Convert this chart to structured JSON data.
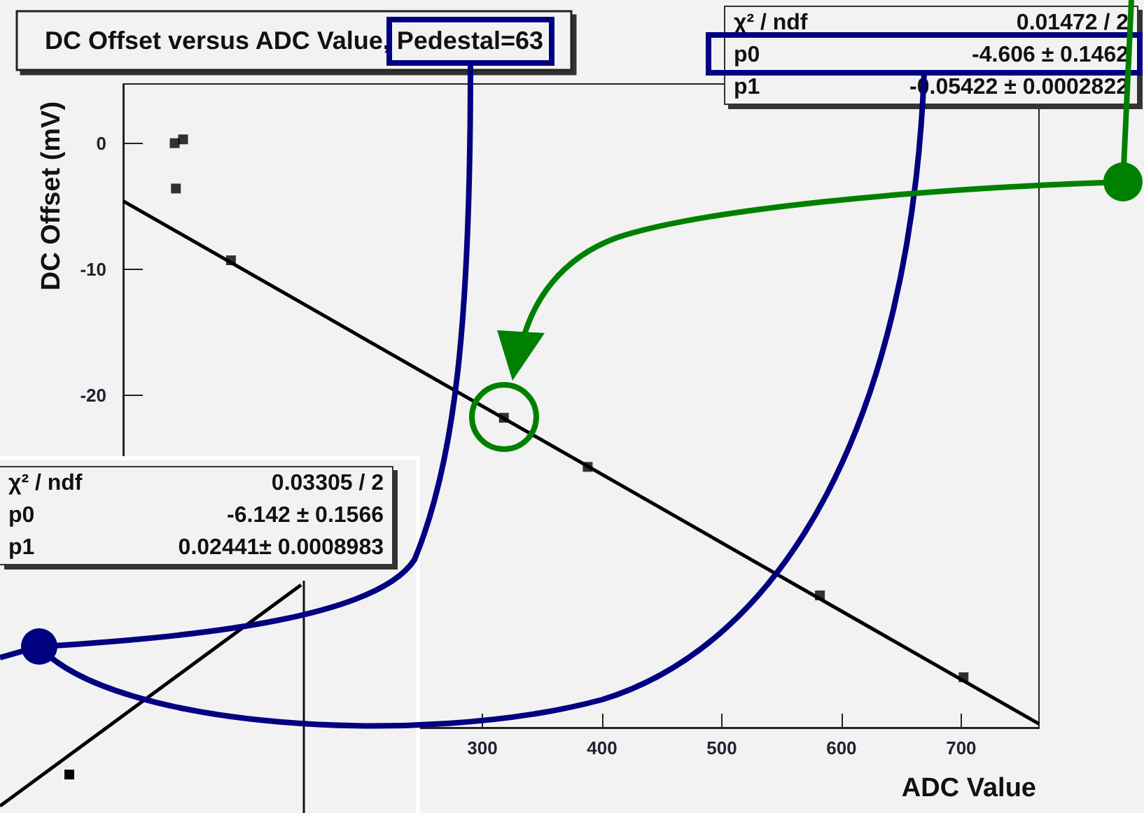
{
  "chart_data": [
    {
      "type": "scatter",
      "title": "DC Offset versus ADC Value, Pedestal=63",
      "xlabel": "ADC Value",
      "ylabel": "DC Offset (mV)",
      "series": [
        {
          "color": "#000000",
          "marker": "square",
          "x": [
            43,
            50,
            44,
            90,
            318,
            388,
            582,
            702
          ],
          "values": [
            0,
            0.3,
            -3.6,
            -9.3,
            -21.8,
            -25.7,
            -35.9,
            -42.4
          ]
        },
        {
          "type": "line",
          "color": "#000000",
          "marker": "none",
          "x": [
            0,
            765
          ],
          "values": [
            -4.6,
            -46.1
          ]
        }
      ],
      "xlim": [
        0,
        765
      ],
      "ylim": [
        -46.4,
        4.7
      ],
      "xticks": [
        300,
        400,
        500,
        600,
        700
      ],
      "yticks": [
        -20,
        -10,
        0
      ],
      "grid": false,
      "annotations": [
        "χ² / ndf",
        "0.01472 / 2",
        "p0",
        "-4.606 ± 0.1462",
        "p1",
        "-0.05422 ± 0.0002822"
      ]
    },
    {
      "type": "other",
      "annotations": [
        "χ² / ndf",
        "0.03305 / 2",
        "p0",
        "-6.142 ± 0.1566",
        "p1",
        "0.02441± 0.0008983"
      ]
    }
  ]
}
